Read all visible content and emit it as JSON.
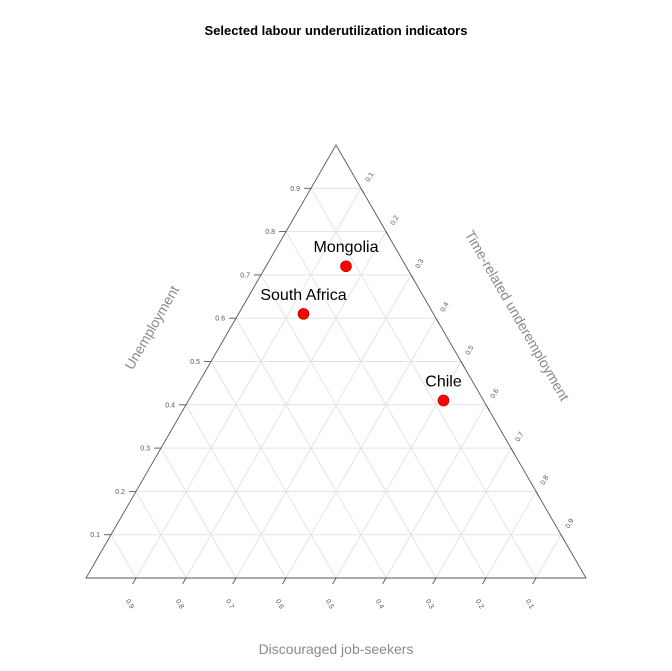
{
  "chart_data": {
    "type": "scatter",
    "subtype": "ternary",
    "title": "Selected labour underutilization indicators",
    "axes": {
      "left": {
        "label": "Unemployment",
        "ticks": [
          "0.1",
          "0.2",
          "0.3",
          "0.4",
          "0.5",
          "0.6",
          "0.7",
          "0.8",
          "0.9"
        ]
      },
      "right": {
        "label": "Time-related underemployment",
        "ticks": [
          "0.1",
          "0.2",
          "0.3",
          "0.4",
          "0.5",
          "0.6",
          "0.7",
          "0.8",
          "0.9"
        ]
      },
      "bottom": {
        "label": "Discouraged job-seekers",
        "ticks": [
          "0.9",
          "0.8",
          "0.7",
          "0.6",
          "0.5",
          "0.4",
          "0.3",
          "0.2",
          "0.1"
        ]
      }
    },
    "grid": true,
    "point_color": "#ff0000",
    "points": [
      {
        "label": "Mongolia",
        "unemployment": 0.72,
        "time_related_underemployment": 0.16,
        "discouraged_job_seekers": 0.12
      },
      {
        "label": "South Africa",
        "unemployment": 0.61,
        "time_related_underemployment": 0.13,
        "discouraged_job_seekers": 0.26
      },
      {
        "label": "Chile",
        "unemployment": 0.41,
        "time_related_underemployment": 0.51,
        "discouraged_job_seekers": 0.08
      }
    ]
  }
}
